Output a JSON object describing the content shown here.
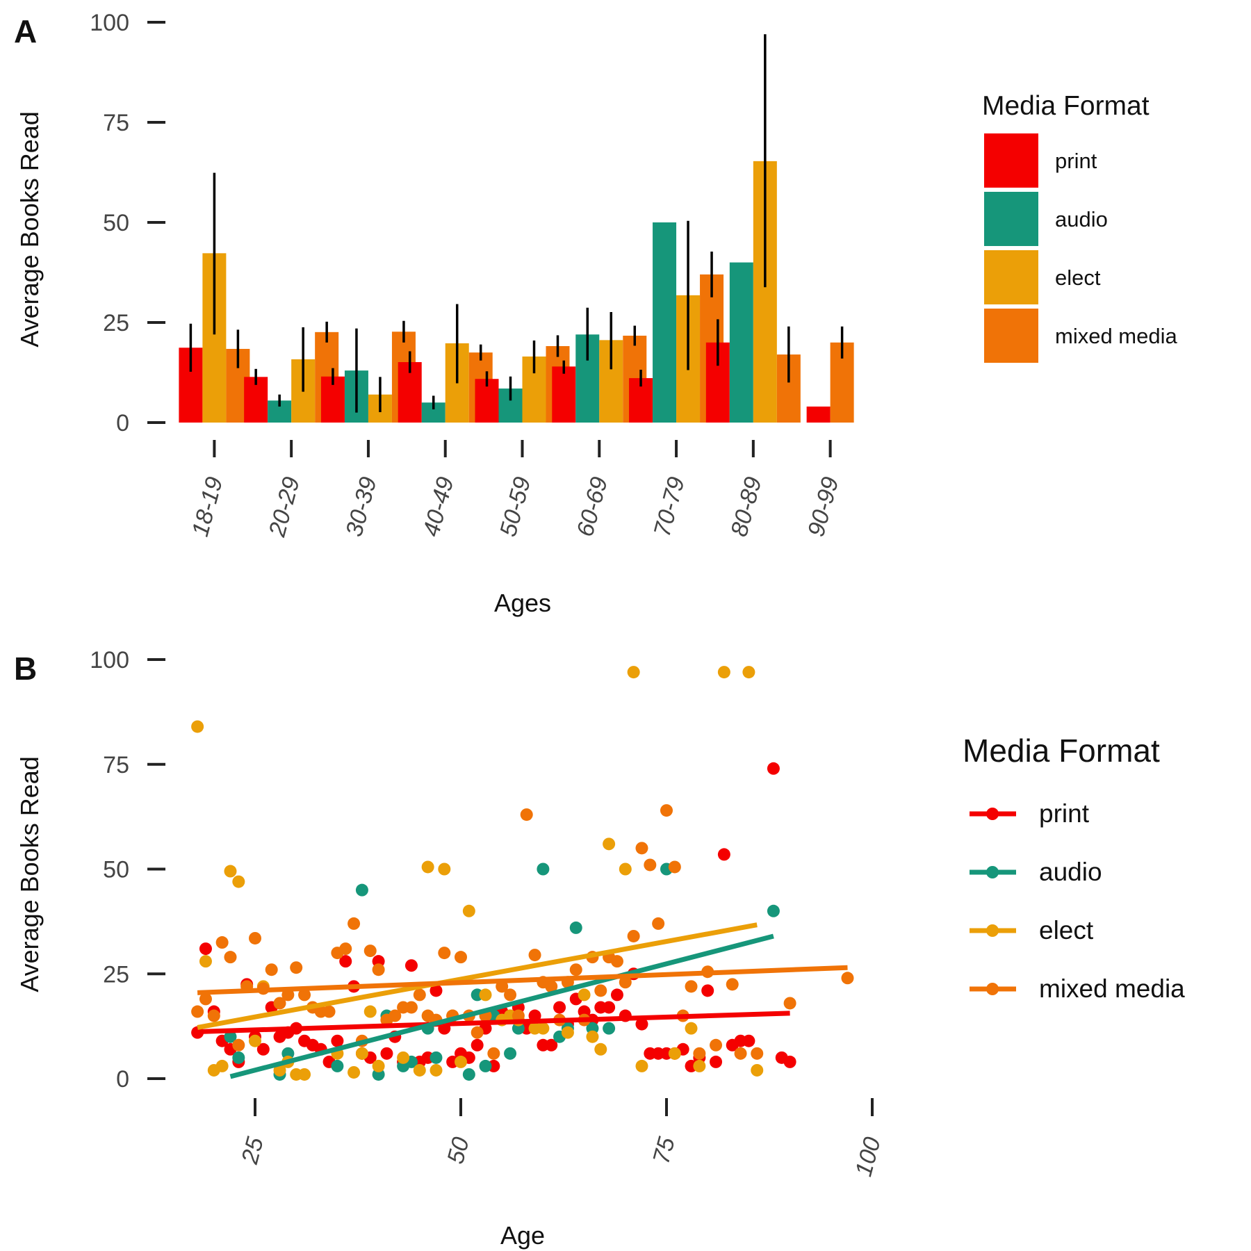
{
  "panels": {
    "a_label": "A",
    "b_label": "B"
  },
  "colors": {
    "print": "#f40000",
    "audio": "#16967a",
    "elect": "#eb9f08",
    "mixed media": "#f07307"
  },
  "chart_data": [
    {
      "type": "bar",
      "panel": "A",
      "title": "",
      "xlabel": "Ages",
      "ylabel": "Average Books Read",
      "ylim": [
        0,
        100
      ],
      "yticks": [
        0,
        25,
        50,
        75,
        100
      ],
      "grid": false,
      "legend_title": "Media Format",
      "legend_position": "right",
      "categories": [
        "18-19",
        "20-29",
        "30-39",
        "40-49",
        "50-59",
        "60-69",
        "70-79",
        "80-89",
        "90-99"
      ],
      "series": [
        {
          "name": "print",
          "values": [
            18.7,
            11.4,
            11.5,
            15.1,
            10.9,
            14.0,
            11.1,
            20.0,
            4.0
          ],
          "err_low": [
            12.7,
            9.4,
            9.4,
            12.4,
            9.0,
            12.2,
            9.0,
            14.2,
            null
          ],
          "err_high": [
            24.7,
            13.4,
            13.6,
            17.8,
            12.8,
            15.5,
            13.2,
            25.8,
            null
          ]
        },
        {
          "name": "audio",
          "values": [
            null,
            5.5,
            13.0,
            5.0,
            8.5,
            22.0,
            50.0,
            40.0,
            null
          ],
          "err_low": [
            null,
            4.0,
            2.5,
            3.3,
            5.5,
            15.5,
            null,
            null,
            null
          ],
          "err_high": [
            null,
            7.0,
            23.5,
            6.7,
            11.5,
            28.7,
            null,
            null,
            null
          ]
        },
        {
          "name": "elect",
          "values": [
            42.3,
            15.8,
            7.0,
            19.8,
            16.5,
            20.6,
            31.8,
            65.3,
            null
          ],
          "err_low": [
            22.0,
            7.7,
            2.6,
            9.8,
            12.3,
            13.3,
            13.1,
            33.8,
            null
          ],
          "err_high": [
            62.4,
            23.8,
            11.4,
            29.6,
            20.5,
            27.6,
            50.4,
            97.0,
            null
          ]
        },
        {
          "name": "mixed media",
          "values": [
            18.4,
            22.6,
            22.7,
            17.5,
            19.1,
            21.7,
            37.0,
            17.0,
            20.0
          ],
          "err_low": [
            13.6,
            20.0,
            20.0,
            15.5,
            16.4,
            19.2,
            31.3,
            10.0,
            16.0
          ],
          "err_high": [
            23.2,
            25.2,
            25.4,
            19.5,
            21.8,
            24.2,
            42.7,
            24.0,
            24.0
          ]
        }
      ]
    },
    {
      "type": "scatter",
      "panel": "B",
      "title": "",
      "xlabel": "Age",
      "ylabel": "Average Books Read",
      "xlim": [
        15,
        100
      ],
      "ylim": [
        0,
        100
      ],
      "xticks": [
        25,
        50,
        75,
        100
      ],
      "yticks": [
        0,
        25,
        50,
        75,
        100
      ],
      "grid": false,
      "legend_title": "Media Format",
      "legend_position": "right",
      "series": [
        {
          "name": "print",
          "points": [
            [
              18,
              11
            ],
            [
              19,
              31
            ],
            [
              20,
              16
            ],
            [
              21,
              9
            ],
            [
              22,
              7
            ],
            [
              23,
              4
            ],
            [
              24,
              22.5
            ],
            [
              25,
              10
            ],
            [
              26,
              7
            ],
            [
              27,
              17
            ],
            [
              28,
              10
            ],
            [
              29,
              11
            ],
            [
              30,
              12
            ],
            [
              31,
              9
            ],
            [
              32,
              8
            ],
            [
              33,
              7
            ],
            [
              34,
              4
            ],
            [
              35,
              9
            ],
            [
              36,
              28
            ],
            [
              37,
              22
            ],
            [
              38,
              6
            ],
            [
              39,
              5
            ],
            [
              40,
              28
            ],
            [
              41,
              6
            ],
            [
              42,
              10
            ],
            [
              43,
              4
            ],
            [
              44,
              27
            ],
            [
              45,
              4
            ],
            [
              46,
              5
            ],
            [
              47,
              21
            ],
            [
              48,
              12
            ],
            [
              49,
              4
            ],
            [
              50,
              6
            ],
            [
              51,
              5
            ],
            [
              52,
              8
            ],
            [
              53,
              12
            ],
            [
              54,
              3
            ],
            [
              55,
              16
            ],
            [
              56,
              15
            ],
            [
              57,
              17
            ],
            [
              58,
              12
            ],
            [
              59,
              15
            ],
            [
              60,
              8
            ],
            [
              61,
              8
            ],
            [
              62,
              17
            ],
            [
              63,
              13
            ],
            [
              64,
              19
            ],
            [
              65,
              16
            ],
            [
              66,
              14
            ],
            [
              67,
              17
            ],
            [
              68,
              17
            ],
            [
              69,
              20
            ],
            [
              70,
              15
            ],
            [
              71,
              25
            ],
            [
              72,
              13
            ],
            [
              73,
              6
            ],
            [
              74,
              6
            ],
            [
              75,
              6
            ],
            [
              76,
              6
            ],
            [
              77,
              7
            ],
            [
              78,
              3
            ],
            [
              79,
              5
            ],
            [
              80,
              21
            ],
            [
              81,
              4
            ],
            [
              82,
              53.5
            ],
            [
              83,
              8
            ],
            [
              84,
              9
            ],
            [
              85,
              9
            ],
            [
              88,
              74
            ],
            [
              89,
              5
            ],
            [
              90,
              4
            ]
          ],
          "trend": [
            [
              18,
              11.2
            ],
            [
              90,
              15.6
            ]
          ]
        },
        {
          "name": "audio",
          "points": [
            [
              22,
              10
            ],
            [
              23,
              5
            ],
            [
              28,
              1
            ],
            [
              29,
              6
            ],
            [
              35,
              3
            ],
            [
              38,
              45
            ],
            [
              40,
              1
            ],
            [
              41,
              15
            ],
            [
              43,
              3
            ],
            [
              44,
              4
            ],
            [
              46,
              12
            ],
            [
              47,
              5
            ],
            [
              51,
              1
            ],
            [
              52,
              20
            ],
            [
              53,
              3
            ],
            [
              54,
              15
            ],
            [
              56,
              6
            ],
            [
              57,
              12
            ],
            [
              60,
              50
            ],
            [
              62,
              10
            ],
            [
              63,
              12
            ],
            [
              64,
              36
            ],
            [
              66,
              12
            ],
            [
              68,
              12
            ],
            [
              75,
              50
            ],
            [
              88,
              40
            ]
          ],
          "trend": [
            [
              22,
              0.5
            ],
            [
              88,
              34
            ]
          ]
        },
        {
          "name": "elect",
          "points": [
            [
              18,
              84
            ],
            [
              19,
              28
            ],
            [
              20,
              2
            ],
            [
              21,
              3
            ],
            [
              22,
              49.5
            ],
            [
              23,
              47
            ],
            [
              25,
              9
            ],
            [
              26,
              22
            ],
            [
              28,
              2
            ],
            [
              29,
              4
            ],
            [
              30,
              1
            ],
            [
              31,
              1
            ],
            [
              35,
              6
            ],
            [
              37,
              1.5
            ],
            [
              38,
              6
            ],
            [
              39,
              16
            ],
            [
              40,
              3
            ],
            [
              41,
              14
            ],
            [
              43,
              5
            ],
            [
              45,
              2
            ],
            [
              46,
              50.5
            ],
            [
              47,
              2
            ],
            [
              48,
              50
            ],
            [
              49,
              15
            ],
            [
              50,
              4
            ],
            [
              51,
              40
            ],
            [
              53,
              20
            ],
            [
              55,
              14
            ],
            [
              56,
              15
            ],
            [
              57,
              14
            ],
            [
              59,
              12
            ],
            [
              60,
              12
            ],
            [
              63,
              11
            ],
            [
              65,
              20
            ],
            [
              66,
              10
            ],
            [
              67,
              7
            ],
            [
              68,
              56
            ],
            [
              70,
              50
            ],
            [
              71,
              97
            ],
            [
              72,
              3
            ],
            [
              76,
              6
            ],
            [
              78,
              12
            ],
            [
              79,
              3
            ],
            [
              82,
              97
            ],
            [
              85,
              97
            ],
            [
              86,
              2
            ]
          ],
          "trend": [
            [
              18,
              12.2
            ],
            [
              86,
              36.7
            ]
          ]
        },
        {
          "name": "mixed media",
          "points": [
            [
              18,
              16
            ],
            [
              19,
              19
            ],
            [
              20,
              15
            ],
            [
              21,
              32.5
            ],
            [
              22,
              29
            ],
            [
              23,
              8
            ],
            [
              24,
              22
            ],
            [
              25,
              33.5
            ],
            [
              26,
              21.5
            ],
            [
              27,
              26
            ],
            [
              28,
              18
            ],
            [
              29,
              20
            ],
            [
              30,
              26.5
            ],
            [
              31,
              20
            ],
            [
              32,
              17
            ],
            [
              33,
              16
            ],
            [
              34,
              16
            ],
            [
              35,
              30
            ],
            [
              36,
              31
            ],
            [
              37,
              37
            ],
            [
              38,
              9
            ],
            [
              39,
              30.5
            ],
            [
              40,
              26
            ],
            [
              41,
              14
            ],
            [
              42,
              15
            ],
            [
              43,
              17
            ],
            [
              44,
              17
            ],
            [
              45,
              20
            ],
            [
              46,
              15
            ],
            [
              47,
              14
            ],
            [
              48,
              30
            ],
            [
              49,
              15
            ],
            [
              50,
              29
            ],
            [
              51,
              15
            ],
            [
              52,
              11
            ],
            [
              53,
              15
            ],
            [
              54,
              6
            ],
            [
              55,
              22
            ],
            [
              56,
              20
            ],
            [
              57,
              15
            ],
            [
              58,
              63
            ],
            [
              59,
              29.5
            ],
            [
              60,
              23
            ],
            [
              61,
              22
            ],
            [
              62,
              14
            ],
            [
              63,
              23
            ],
            [
              64,
              26
            ],
            [
              65,
              14
            ],
            [
              66,
              29
            ],
            [
              67,
              21
            ],
            [
              68,
              29
            ],
            [
              69,
              28
            ],
            [
              70,
              23
            ],
            [
              71,
              34
            ],
            [
              72,
              55
            ],
            [
              73,
              51
            ],
            [
              74,
              37
            ],
            [
              75,
              64
            ],
            [
              76,
              50.5
            ],
            [
              77,
              15
            ],
            [
              78,
              22
            ],
            [
              79,
              6
            ],
            [
              80,
              25.5
            ],
            [
              81,
              8
            ],
            [
              83,
              22.5
            ],
            [
              84,
              6
            ],
            [
              86,
              6
            ],
            [
              90,
              18
            ],
            [
              97,
              24
            ]
          ],
          "trend": [
            [
              18,
              20.5
            ],
            [
              97,
              26.5
            ]
          ]
        }
      ]
    }
  ]
}
